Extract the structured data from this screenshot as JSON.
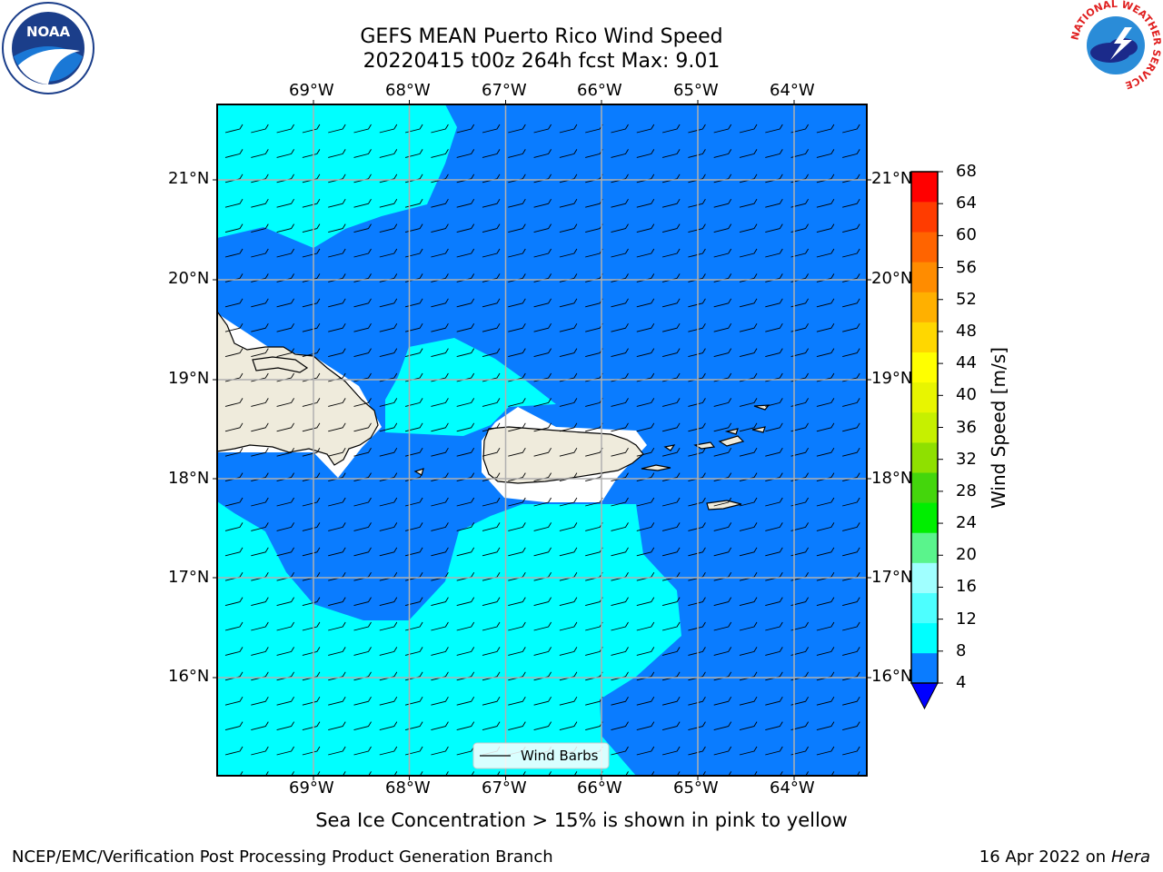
{
  "header": {
    "title_line1": "GEFS MEAN Puerto Rico Wind Speed",
    "title_line2": "20220415 t00z 264h fcst   Max: 9.01"
  },
  "logos": {
    "noaa": "NOAA",
    "nws_ring_text": "NATIONAL WEATHER SERVICE"
  },
  "map": {
    "lon_labels": [
      "69°W",
      "68°W",
      "67°W",
      "66°W",
      "65°W",
      "64°W"
    ],
    "lat_labels": [
      "21°N",
      "20°N",
      "19°N",
      "18°N",
      "17°N",
      "16°N"
    ],
    "legend_label": "Wind Barbs",
    "colors": {
      "land": "#efebdc",
      "band_4_8": "#0a7cff",
      "band_8_12": "#00ffff",
      "grid": "#b0b0b0"
    }
  },
  "colorbar": {
    "label": "Wind Speed [m/s]",
    "ticks": [
      "4",
      "8",
      "12",
      "16",
      "20",
      "24",
      "28",
      "32",
      "36",
      "40",
      "44",
      "48",
      "52",
      "56",
      "60",
      "64",
      "68"
    ],
    "colors": [
      "#0a7cff",
      "#00ffff",
      "#4dffff",
      "#a0ffff",
      "#5af48c",
      "#00ee00",
      "#44d60c",
      "#8fe000",
      "#c6f000",
      "#e8f500",
      "#ffff00",
      "#ffd700",
      "#ffb000",
      "#ff8c00",
      "#ff6400",
      "#ff3c00",
      "#ff0000"
    ],
    "extend_color": "#0000ff"
  },
  "subtitle": "Sea Ice Concentration > 15% is shown in pink to yellow",
  "footer": {
    "left": "NCEP/EMC/Verification Post Processing Product Generation Branch",
    "right_prefix": "16 Apr 2022 on ",
    "right_host": "Hera"
  }
}
